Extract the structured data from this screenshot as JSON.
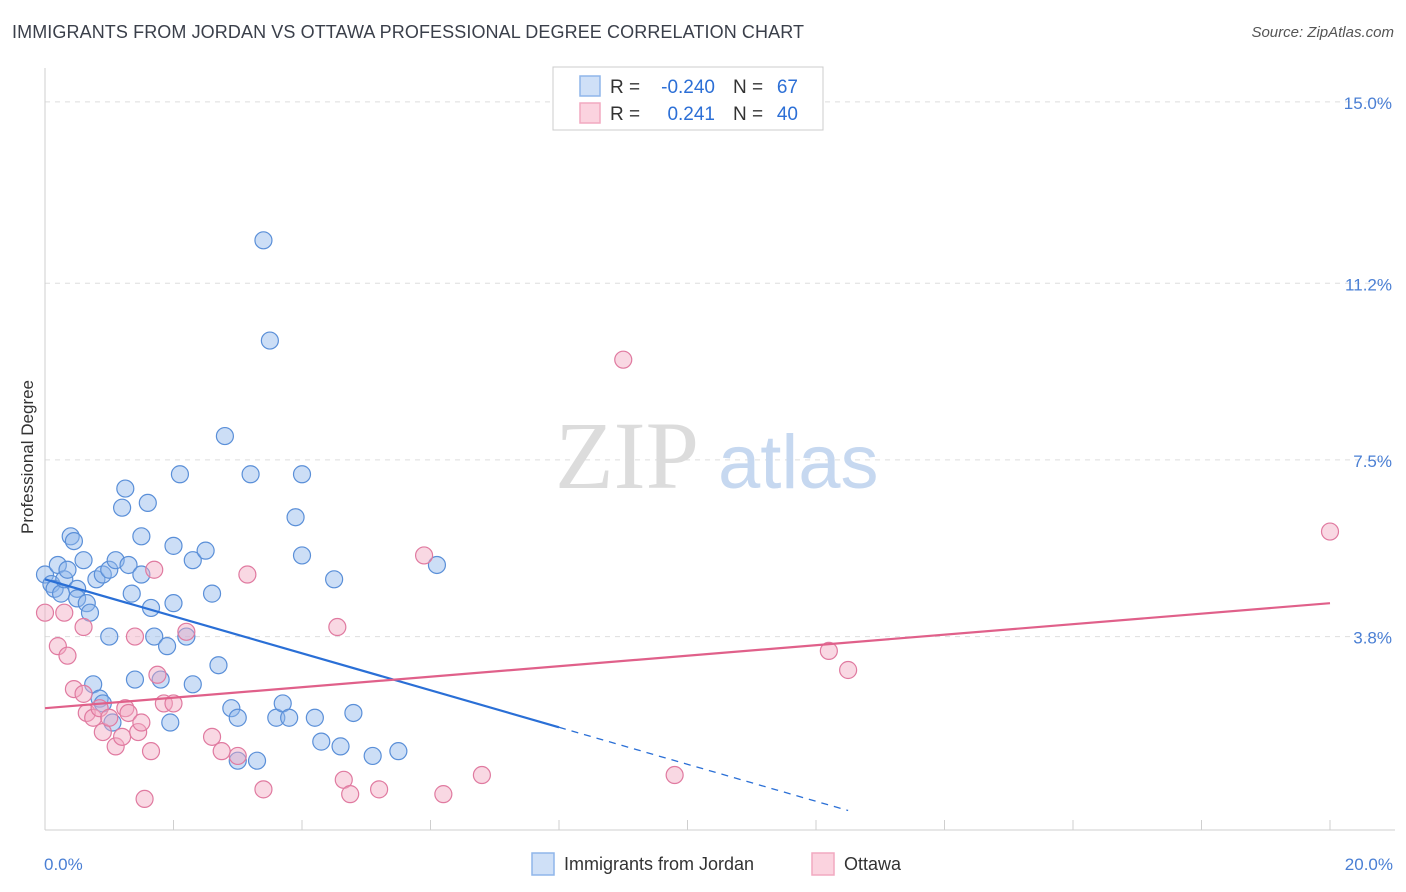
{
  "title": "IMMIGRANTS FROM JORDAN VS OTTAWA PROFESSIONAL DEGREE CORRELATION CHART",
  "source": "Source: ZipAtlas.com",
  "watermark": {
    "zip": "ZIP",
    "atlas": "atlas"
  },
  "legend": {
    "rows": [
      {
        "r_label": "R =",
        "r_value": "-0.240",
        "n_label": "N =",
        "n_value": "67",
        "color": "#8fb5ea"
      },
      {
        "r_label": "R =",
        "r_value": "0.241",
        "n_label": "N =",
        "n_value": "40",
        "color": "#f2a9c0"
      }
    ]
  },
  "chart_data": {
    "type": "scatter",
    "ylabel": "Professional Degree",
    "xlim": [
      0,
      20
    ],
    "ylim": [
      0,
      15.5
    ],
    "y_ticks": [
      {
        "value": 3.8,
        "label": "3.8%"
      },
      {
        "value": 7.5,
        "label": "7.5%"
      },
      {
        "value": 11.2,
        "label": "11.2%"
      },
      {
        "value": 15.0,
        "label": "15.0%"
      }
    ],
    "x_tick_labels": [
      {
        "value": 0,
        "label": "0.0%"
      },
      {
        "value": 20,
        "label": "20.0%"
      }
    ],
    "series": [
      {
        "name": "Immigrants from Jordan",
        "color": "#8fb5ea",
        "stroke": "#5a8fd8",
        "trend": {
          "x0": 0,
          "y0": 5.0,
          "x1": 8,
          "y1": 1.9,
          "dash_to_x": 12.5,
          "color": "#2a6fd6"
        },
        "points": [
          [
            0.0,
            5.1
          ],
          [
            0.1,
            4.9
          ],
          [
            0.15,
            4.8
          ],
          [
            0.2,
            5.3
          ],
          [
            0.25,
            4.7
          ],
          [
            0.3,
            5.0
          ],
          [
            0.35,
            5.2
          ],
          [
            0.4,
            5.9
          ],
          [
            0.45,
            5.8
          ],
          [
            0.5,
            4.8
          ],
          [
            0.5,
            4.6
          ],
          [
            0.6,
            5.4
          ],
          [
            0.65,
            4.5
          ],
          [
            0.7,
            4.3
          ],
          [
            0.75,
            2.8
          ],
          [
            0.8,
            5.0
          ],
          [
            0.85,
            2.5
          ],
          [
            0.9,
            2.4
          ],
          [
            0.9,
            5.1
          ],
          [
            1.0,
            5.2
          ],
          [
            1.0,
            3.8
          ],
          [
            1.05,
            2.0
          ],
          [
            1.1,
            5.4
          ],
          [
            1.2,
            6.5
          ],
          [
            1.25,
            6.9
          ],
          [
            1.3,
            5.3
          ],
          [
            1.35,
            4.7
          ],
          [
            1.4,
            2.9
          ],
          [
            1.5,
            5.9
          ],
          [
            1.5,
            5.1
          ],
          [
            1.6,
            6.6
          ],
          [
            1.65,
            4.4
          ],
          [
            1.7,
            3.8
          ],
          [
            1.8,
            2.9
          ],
          [
            1.9,
            3.6
          ],
          [
            1.95,
            2.0
          ],
          [
            2.0,
            5.7
          ],
          [
            2.0,
            4.5
          ],
          [
            2.1,
            7.2
          ],
          [
            2.2,
            3.8
          ],
          [
            2.3,
            5.4
          ],
          [
            2.3,
            2.8
          ],
          [
            2.5,
            5.6
          ],
          [
            2.6,
            4.7
          ],
          [
            2.7,
            3.2
          ],
          [
            2.8,
            8.0
          ],
          [
            2.9,
            2.3
          ],
          [
            3.0,
            2.1
          ],
          [
            3.0,
            1.2
          ],
          [
            3.2,
            7.2
          ],
          [
            3.3,
            1.2
          ],
          [
            3.4,
            12.1
          ],
          [
            3.5,
            10.0
          ],
          [
            3.6,
            2.1
          ],
          [
            3.7,
            2.4
          ],
          [
            3.8,
            2.1
          ],
          [
            3.9,
            6.3
          ],
          [
            4.0,
            7.2
          ],
          [
            4.0,
            5.5
          ],
          [
            4.2,
            2.1
          ],
          [
            4.3,
            1.6
          ],
          [
            4.5,
            5.0
          ],
          [
            4.6,
            1.5
          ],
          [
            4.8,
            2.2
          ],
          [
            5.1,
            1.3
          ],
          [
            5.5,
            1.4
          ],
          [
            6.1,
            5.3
          ]
        ]
      },
      {
        "name": "Ottawa",
        "color": "#f2a9c0",
        "stroke": "#e07aa0",
        "trend": {
          "x0": 0,
          "y0": 2.3,
          "x1": 20,
          "y1": 4.5,
          "color": "#e0608a"
        },
        "points": [
          [
            0.0,
            4.3
          ],
          [
            0.2,
            3.6
          ],
          [
            0.3,
            4.3
          ],
          [
            0.35,
            3.4
          ],
          [
            0.45,
            2.7
          ],
          [
            0.6,
            2.6
          ],
          [
            0.6,
            4.0
          ],
          [
            0.65,
            2.2
          ],
          [
            0.75,
            2.1
          ],
          [
            0.85,
            2.3
          ],
          [
            0.9,
            1.8
          ],
          [
            1.0,
            2.1
          ],
          [
            1.1,
            1.5
          ],
          [
            1.2,
            1.7
          ],
          [
            1.25,
            2.3
          ],
          [
            1.3,
            2.2
          ],
          [
            1.4,
            3.8
          ],
          [
            1.45,
            1.8
          ],
          [
            1.5,
            2.0
          ],
          [
            1.55,
            0.4
          ],
          [
            1.65,
            1.4
          ],
          [
            1.7,
            5.2
          ],
          [
            1.75,
            3.0
          ],
          [
            1.85,
            2.4
          ],
          [
            2.0,
            2.4
          ],
          [
            2.2,
            3.9
          ],
          [
            2.6,
            1.7
          ],
          [
            2.75,
            1.4
          ],
          [
            3.0,
            1.3
          ],
          [
            3.15,
            5.1
          ],
          [
            3.4,
            0.6
          ],
          [
            4.55,
            4.0
          ],
          [
            4.65,
            0.8
          ],
          [
            4.75,
            0.5
          ],
          [
            5.2,
            0.6
          ],
          [
            5.9,
            5.5
          ],
          [
            6.2,
            0.5
          ],
          [
            6.8,
            0.9
          ],
          [
            9.0,
            9.6
          ],
          [
            9.8,
            0.9
          ]
        ]
      }
    ],
    "extra_pink_points": [
      [
        12.2,
        3.5
      ],
      [
        12.5,
        3.1
      ],
      [
        20.0,
        6.0
      ]
    ]
  },
  "bottom_legend": [
    {
      "label": "Immigrants from Jordan",
      "color": "#8fb5ea"
    },
    {
      "label": "Ottawa",
      "color": "#f2a9c0"
    }
  ]
}
